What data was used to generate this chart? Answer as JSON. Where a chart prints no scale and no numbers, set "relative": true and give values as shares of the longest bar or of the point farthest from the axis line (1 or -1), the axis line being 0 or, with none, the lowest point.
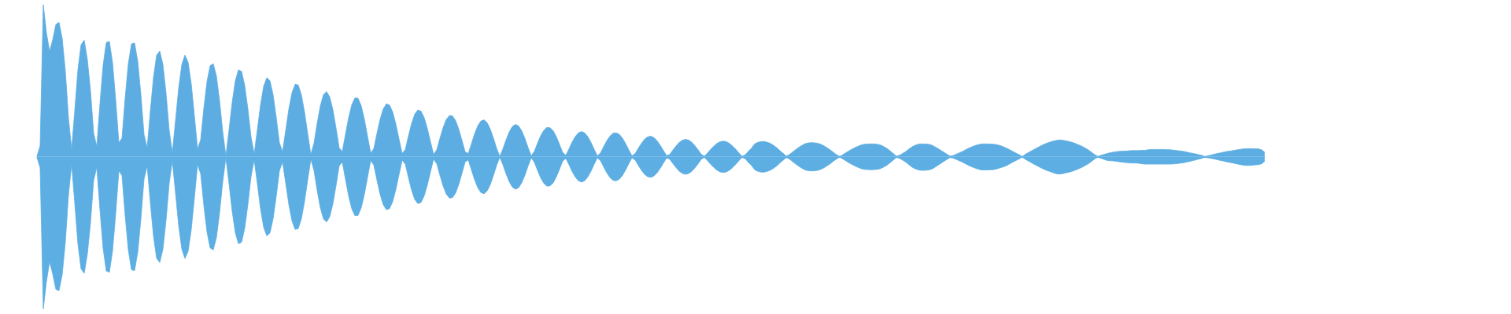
{
  "chart_data": {
    "type": "area",
    "relative": true,
    "categories": [
      null,
      null,
      null,
      null,
      null,
      null,
      null,
      null,
      null,
      null,
      null,
      null,
      null,
      null,
      null,
      null,
      null,
      null,
      null,
      null,
      null,
      null,
      null,
      null,
      null,
      null,
      null,
      null,
      null,
      null,
      null,
      null,
      null,
      null,
      null,
      null,
      null,
      null,
      null,
      null,
      null,
      null,
      null,
      null,
      null,
      null,
      null,
      null,
      null,
      null,
      null,
      null,
      null,
      null,
      null,
      null,
      null,
      null,
      null,
      null,
      null,
      null,
      null,
      null,
      null,
      null,
      null,
      null,
      null,
      null,
      null,
      null,
      null,
      null,
      null,
      null,
      null,
      null,
      null,
      null,
      null,
      null,
      null,
      null,
      null,
      null,
      null,
      null,
      null,
      null,
      null,
      null,
      null,
      null,
      null,
      null,
      null,
      null,
      null,
      null,
      null,
      null,
      null,
      null,
      null,
      null,
      null,
      null,
      null,
      null,
      null,
      null,
      null,
      null,
      null,
      null,
      null,
      null,
      null,
      null,
      null,
      null,
      null,
      null,
      null,
      null,
      null,
      null,
      null,
      null,
      null,
      null,
      null,
      null,
      null,
      null,
      null,
      null,
      null,
      null,
      null,
      null,
      null,
      null,
      null,
      null,
      null,
      null,
      null,
      null,
      null,
      null,
      null,
      null,
      null,
      null,
      null,
      null,
      null,
      null,
      null,
      null,
      null,
      null,
      null,
      null,
      null,
      null,
      null,
      null,
      null,
      null,
      null,
      null,
      null,
      null,
      null,
      null,
      null,
      null,
      null,
      null,
      null,
      null,
      null,
      null,
      null,
      null,
      null,
      null,
      null,
      null,
      null,
      null,
      null,
      null,
      null,
      null,
      null,
      null,
      null,
      null,
      null,
      null,
      null,
      null,
      null,
      null,
      null,
      null,
      null,
      null,
      null,
      null,
      null,
      null,
      null,
      null,
      null,
      null,
      null,
      null,
      null,
      null,
      null,
      null,
      null,
      null,
      null,
      null,
      null,
      null,
      null,
      null,
      null,
      null,
      null,
      null,
      null,
      null,
      null,
      null,
      null,
      null,
      null,
      null,
      null,
      null,
      null,
      null,
      null,
      null,
      null,
      null,
      null,
      null,
      null,
      null,
      null,
      null,
      null,
      null,
      null,
      null,
      null,
      null,
      null,
      null,
      null,
      null,
      null,
      null,
      null,
      null,
      null,
      null,
      null,
      null,
      null,
      null,
      null,
      null,
      null,
      null,
      null,
      null,
      null,
      null,
      null,
      null,
      null,
      null,
      null,
      null,
      null,
      null,
      null,
      null,
      null,
      null,
      null,
      null,
      null,
      null,
      null,
      null,
      null,
      null,
      null,
      null,
      null,
      null,
      null,
      null,
      null,
      null,
      null,
      null,
      null,
      null,
      null,
      null,
      null,
      null,
      null,
      null,
      null,
      null,
      null,
      null,
      null,
      null,
      null,
      null,
      null,
      null,
      null,
      null,
      null,
      null,
      null,
      null,
      null,
      null,
      null,
      null,
      null,
      null,
      null,
      null,
      null,
      null,
      null,
      null,
      null,
      null,
      null,
      null,
      null,
      null,
      null,
      null,
      null,
      null,
      null,
      null,
      null,
      null,
      null,
      null,
      null,
      null,
      null,
      null,
      null,
      null,
      null,
      null,
      null,
      null,
      null,
      null,
      null,
      null,
      null,
      null,
      null,
      null,
      null,
      null,
      null
    ],
    "series": [
      {
        "color": "#5dade2",
        "values": [
          0.005,
          0.072,
          1,
          0.815,
          0.693,
          0.77,
          0.87,
          0.884,
          0.78,
          0.565,
          0.256,
          0.048,
          0.305,
          0.573,
          0.737,
          0.766,
          0.64,
          0.433,
          0.155,
          0.068,
          0.347,
          0.601,
          0.751,
          0.759,
          0.619,
          0.375,
          0.093,
          0.122,
          0.385,
          0.61,
          0.742,
          0.748,
          0.629,
          0.41,
          0.147,
          0.06,
          0.298,
          0.521,
          0.667,
          0.695,
          0.608,
          0.417,
          0.173,
          0.027,
          0.237,
          0.451,
          0.607,
          0.669,
          0.622,
          0.48,
          0.271,
          0.052,
          0.112,
          0.319,
          0.494,
          0.599,
          0.612,
          0.531,
          0.368,
          0.165,
          0.007,
          0.176,
          0.357,
          0.499,
          0.572,
          0.561,
          0.468,
          0.313,
          0.13,
          0.019,
          0.177,
          0.34,
          0.463,
          0.52,
          0.501,
          0.408,
          0.26,
          0.093,
          0.033,
          0.172,
          0.313,
          0.421,
          0.477,
          0.472,
          0.407,
          0.293,
          0.151,
          0.015,
          0.09,
          0.22,
          0.334,
          0.408,
          0.429,
          0.393,
          0.309,
          0.189,
          0.058,
          0.036,
          0.148,
          0.258,
          0.342,
          0.387,
          0.385,
          0.335,
          0.247,
          0.136,
          0.025,
          0.054,
          0.154,
          0.246,
          0.315,
          0.348,
          0.34,
          0.294,
          0.215,
          0.118,
          0.022,
          0.048,
          0.137,
          0.219,
          0.28,
          0.308,
          0.3,
          0.257,
          0.186,
          0.099,
          0.015,
          0.046,
          0.121,
          0.191,
          0.244,
          0.271,
          0.269,
          0.237,
          0.18,
          0.109,
          0.033,
          0.021,
          0.085,
          0.15,
          0.202,
          0.235,
          0.243,
          0.224,
          0.182,
          0.123,
          0.057,
          0.003,
          0.051,
          0.111,
          0.163,
          0.199,
          0.213,
          0.203,
          0.17,
          0.121,
          0.061,
          0.006,
          0.036,
          0.089,
          0.138,
          0.174,
          0.193,
          0.191,
          0.17,
          0.131,
          0.081,
          0.028,
          0.01,
          0.052,
          0.097,
          0.133,
          0.158,
          0.166,
          0.157,
          0.131,
          0.094,
          0.049,
          0.007,
          0.025,
          0.066,
          0.105,
          0.136,
          0.155,
          0.158,
          0.147,
          0.122,
          0.086,
          0.045,
          0.007,
          0.021,
          0.055,
          0.088,
          0.115,
          0.131,
          0.135,
          0.126,
          0.105,
          0.075,
          0.041,
          0.008,
          0.015,
          0.044,
          0.071,
          0.094,
          0.109,
          0.115,
          0.11,
          0.096,
          0.073,
          0.046,
          0.017,
          0.004,
          0.025,
          0.049,
          0.07,
          0.088,
          0.099,
          0.103,
          0.099,
          0.088,
          0.07,
          0.049,
          0.025,
          0.004,
          0.013,
          0.037,
          0.057,
          0.085,
          0.095,
          0.1,
          0.101,
          0.095,
          0.088,
          0.075,
          0.06,
          0.04,
          0.023,
          0.005,
          0.014,
          0.031,
          0.047,
          0.062,
          0.075,
          0.086,
          0.091,
          0.093,
          0.092,
          0.089,
          0.082,
          0.072,
          0.059,
          0.045,
          0.029,
          0.014,
          0.002,
          0.014,
          0.027,
          0.04,
          0.051,
          0.062,
          0.071,
          0.079,
          0.083,
          0.084,
          0.085,
          0.084,
          0.082,
          0.077,
          0.067,
          0.055,
          0.039,
          0.022,
          0.004,
          0.01,
          0.022,
          0.035,
          0.051,
          0.066,
          0.076,
          0.083,
          0.085,
          0.084,
          0.083,
          0.079,
          0.069,
          0.057,
          0.044,
          0.031,
          0.018,
          0.005,
          0.008,
          0.017,
          0.026,
          0.035,
          0.046,
          0.057,
          0.066,
          0.074,
          0.08,
          0.084,
          0.085,
          0.084,
          0.084,
          0.082,
          0.079,
          0.074,
          0.066,
          0.057,
          0.046,
          0.035,
          0.024,
          0.014,
          0.002,
          0.017,
          0.028,
          0.04,
          0.051,
          0.062,
          0.073,
          0.083,
          0.091,
          0.098,
          0.104,
          0.108,
          0.111,
          0.108,
          0.104,
          0.1,
          0.094,
          0.086,
          0.078,
          0.069,
          0.057,
          0.045,
          0.03,
          0.014,
          0.003,
          0.01,
          0.016,
          0.022,
          0.027,
          0.031,
          0.034,
          0.036,
          0.037,
          0.038,
          0.04,
          0.041,
          0.041,
          0.041,
          0.042,
          0.043,
          0.046,
          0.048,
          0.048,
          0.048,
          0.048,
          0.048,
          0.047,
          0.046,
          0.044,
          0.041,
          0.039,
          0.036,
          0.032,
          0.027,
          0.023,
          0.019,
          0.014,
          0.01,
          0.002,
          0.007,
          0.012,
          0.017,
          0.022,
          0.026,
          0.031,
          0.035,
          0.038,
          0.041,
          0.045,
          0.048,
          0.051,
          0.053,
          0.054,
          0.053,
          0.053,
          0.052,
          0.046,
          0.03
        ]
      },
      {
        "color": "#5caee3",
        "values": [
          -0.005,
          -0.072,
          -1,
          -0.82,
          -0.69,
          -0.77,
          -0.872,
          -0.88,
          -0.776,
          -0.562,
          -0.252,
          -0.048,
          -0.305,
          -0.573,
          -0.737,
          -0.766,
          -0.64,
          -0.433,
          -0.155,
          -0.068,
          -0.347,
          -0.601,
          -0.751,
          -0.759,
          -0.619,
          -0.375,
          -0.093,
          -0.122,
          -0.385,
          -0.61,
          -0.742,
          -0.748,
          -0.629,
          -0.41,
          -0.147,
          -0.06,
          -0.298,
          -0.521,
          -0.667,
          -0.695,
          -0.608,
          -0.417,
          -0.173,
          -0.027,
          -0.237,
          -0.451,
          -0.607,
          -0.669,
          -0.622,
          -0.48,
          -0.271,
          -0.052,
          -0.112,
          -0.319,
          -0.494,
          -0.599,
          -0.612,
          -0.531,
          -0.368,
          -0.165,
          -0.007,
          -0.176,
          -0.357,
          -0.499,
          -0.572,
          -0.561,
          -0.468,
          -0.313,
          -0.13,
          -0.019,
          -0.177,
          -0.34,
          -0.463,
          -0.52,
          -0.501,
          -0.408,
          -0.26,
          -0.093,
          -0.033,
          -0.172,
          -0.313,
          -0.421,
          -0.477,
          -0.472,
          -0.407,
          -0.293,
          -0.151,
          -0.015,
          -0.09,
          -0.22,
          -0.334,
          -0.408,
          -0.429,
          -0.393,
          -0.309,
          -0.189,
          -0.058,
          -0.036,
          -0.148,
          -0.258,
          -0.342,
          -0.387,
          -0.385,
          -0.335,
          -0.247,
          -0.136,
          -0.025,
          -0.054,
          -0.154,
          -0.246,
          -0.315,
          -0.348,
          -0.34,
          -0.294,
          -0.215,
          -0.118,
          -0.022,
          -0.048,
          -0.137,
          -0.219,
          -0.28,
          -0.308,
          -0.3,
          -0.257,
          -0.186,
          -0.099,
          -0.015,
          -0.046,
          -0.121,
          -0.191,
          -0.244,
          -0.271,
          -0.269,
          -0.237,
          -0.18,
          -0.109,
          -0.033,
          -0.021,
          -0.085,
          -0.15,
          -0.202,
          -0.235,
          -0.243,
          -0.224,
          -0.182,
          -0.123,
          -0.057,
          -0.003,
          -0.051,
          -0.111,
          -0.163,
          -0.199,
          -0.213,
          -0.203,
          -0.17,
          -0.121,
          -0.061,
          -0.006,
          -0.036,
          -0.089,
          -0.138,
          -0.174,
          -0.193,
          -0.191,
          -0.17,
          -0.131,
          -0.081,
          -0.028,
          -0.01,
          -0.052,
          -0.097,
          -0.133,
          -0.158,
          -0.166,
          -0.157,
          -0.131,
          -0.094,
          -0.049,
          -0.007,
          -0.025,
          -0.066,
          -0.105,
          -0.136,
          -0.155,
          -0.158,
          -0.147,
          -0.122,
          -0.086,
          -0.045,
          -0.007,
          -0.021,
          -0.055,
          -0.088,
          -0.115,
          -0.131,
          -0.135,
          -0.126,
          -0.105,
          -0.075,
          -0.041,
          -0.008,
          -0.015,
          -0.044,
          -0.071,
          -0.094,
          -0.109,
          -0.115,
          -0.11,
          -0.096,
          -0.073,
          -0.046,
          -0.017,
          -0.004,
          -0.025,
          -0.049,
          -0.07,
          -0.088,
          -0.099,
          -0.103,
          -0.099,
          -0.088,
          -0.07,
          -0.049,
          -0.025,
          -0.004,
          -0.013,
          -0.037,
          -0.057,
          -0.085,
          -0.095,
          -0.1,
          -0.101,
          -0.095,
          -0.088,
          -0.075,
          -0.06,
          -0.04,
          -0.023,
          -0.005,
          -0.014,
          -0.031,
          -0.047,
          -0.062,
          -0.075,
          -0.086,
          -0.091,
          -0.093,
          -0.092,
          -0.089,
          -0.082,
          -0.072,
          -0.059,
          -0.045,
          -0.029,
          -0.014,
          -0.002,
          -0.014,
          -0.027,
          -0.04,
          -0.051,
          -0.062,
          -0.071,
          -0.079,
          -0.083,
          -0.084,
          -0.085,
          -0.084,
          -0.082,
          -0.077,
          -0.067,
          -0.055,
          -0.039,
          -0.022,
          -0.004,
          -0.01,
          -0.022,
          -0.035,
          -0.052,
          -0.068,
          -0.079,
          -0.086,
          -0.089,
          -0.089,
          -0.087,
          -0.083,
          -0.072,
          -0.058,
          -0.045,
          -0.031,
          -0.018,
          -0.005,
          -0.008,
          -0.017,
          -0.026,
          -0.035,
          -0.046,
          -0.057,
          -0.066,
          -0.074,
          -0.081,
          -0.086,
          -0.086,
          -0.086,
          -0.085,
          -0.084,
          -0.079,
          -0.072,
          -0.066,
          -0.058,
          -0.046,
          -0.035,
          -0.024,
          -0.014,
          -0.002,
          -0.017,
          -0.028,
          -0.04,
          -0.051,
          -0.062,
          -0.073,
          -0.083,
          -0.091,
          -0.098,
          -0.106,
          -0.112,
          -0.113,
          -0.11,
          -0.105,
          -0.1,
          -0.094,
          -0.086,
          -0.078,
          -0.069,
          -0.057,
          -0.045,
          -0.03,
          -0.014,
          -0.003,
          -0.01,
          -0.017,
          -0.024,
          -0.026,
          -0.027,
          -0.03,
          -0.033,
          -0.036,
          -0.038,
          -0.04,
          -0.041,
          -0.041,
          -0.042,
          -0.046,
          -0.048,
          -0.048,
          -0.048,
          -0.048,
          -0.048,
          -0.048,
          -0.048,
          -0.048,
          -0.048,
          -0.047,
          -0.045,
          -0.042,
          -0.04,
          -0.035,
          -0.031,
          -0.026,
          -0.021,
          -0.015,
          -0.01,
          -0.002,
          -0.007,
          -0.01,
          -0.014,
          -0.019,
          -0.024,
          -0.028,
          -0.033,
          -0.037,
          -0.041,
          -0.046,
          -0.05,
          -0.054,
          -0.057,
          -0.057,
          -0.055,
          -0.053,
          -0.052,
          -0.046,
          -0.03
        ]
      }
    ]
  }
}
